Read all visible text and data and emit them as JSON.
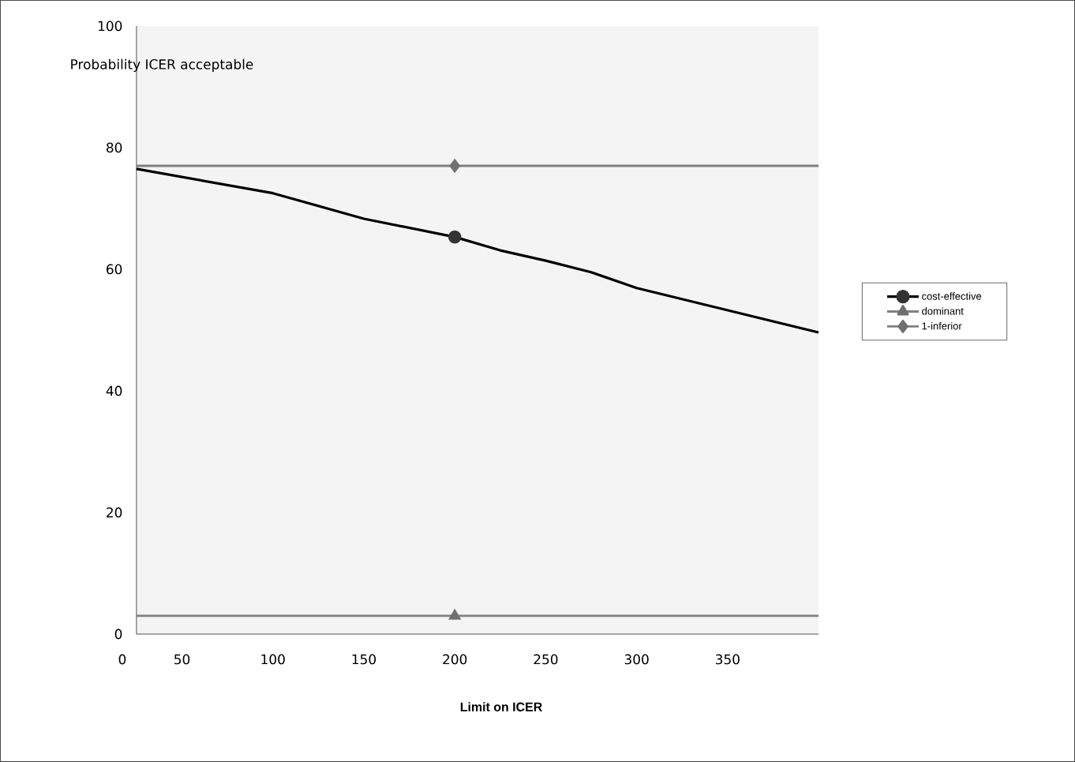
{
  "chart_data": {
    "type": "line",
    "xlabel": "Limit on ICER",
    "ylabel": "Probability ICER acceptable",
    "annotations": [
      "0"
    ],
    "xlim": [
      25,
      400
    ],
    "ylim": [
      0,
      100
    ],
    "xticks": [
      50,
      100,
      150,
      200,
      250,
      300,
      350
    ],
    "yticks": [
      0,
      20,
      40,
      60,
      80,
      100
    ],
    "grid": false,
    "legend": "right",
    "series": [
      {
        "name": "cost-effective",
        "color": "#000000",
        "x": [
          25,
          100,
          150,
          200,
          225,
          250,
          275,
          300,
          400
        ],
        "values": [
          76.5,
          72.5,
          68.3,
          65.3,
          63.1,
          61.4,
          59.5,
          56.9,
          49.6
        ]
      },
      {
        "name": "dominant",
        "color": "#808080",
        "x": [
          25,
          400
        ],
        "values": [
          3,
          3
        ]
      },
      {
        "name": "1-inferior",
        "color": "#808080",
        "x": [
          25,
          400
        ],
        "values": [
          77,
          77
        ]
      },
      {
        "type": "scatter",
        "color": "#333333",
        "marker": "circle",
        "x": [
          200
        ],
        "values": [
          65.3
        ]
      },
      {
        "type": "scatter",
        "color": "#707070",
        "marker": "triangle",
        "x": [
          200
        ],
        "values": [
          3
        ]
      },
      {
        "type": "scatter",
        "color": "#707070",
        "marker": "diamond",
        "x": [
          200
        ],
        "values": [
          77
        ]
      }
    ]
  }
}
